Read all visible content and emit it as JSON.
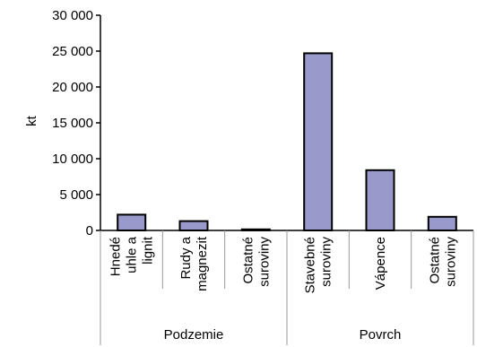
{
  "chart_data": {
    "type": "bar",
    "ylabel": "kt",
    "ylim": [
      0,
      30000
    ],
    "yticks": [
      0,
      5000,
      10000,
      15000,
      20000,
      25000,
      30000
    ],
    "ytick_labels": [
      "0",
      "5 000",
      "10 000",
      "15 000",
      "20 000",
      "25 000",
      "30 000"
    ],
    "categories": [
      [
        "Hnedé",
        "uhle a",
        "lignit"
      ],
      [
        "Rudy a",
        "magnezit"
      ],
      [
        "Ostatné",
        "suroviny"
      ],
      [
        "Stavebné",
        "suroviny"
      ],
      [
        "Vápence"
      ],
      [
        "Ostatné",
        "suroviny"
      ]
    ],
    "values": [
      2200,
      1300,
      150,
      24700,
      8400,
      1900
    ],
    "groups": [
      {
        "label": "Podzemie",
        "span": 3
      },
      {
        "label": "Povrch",
        "span": 3
      }
    ],
    "bar_color": "#9999cc",
    "bar_stroke": "#000000",
    "grid": false,
    "legend": "none"
  }
}
